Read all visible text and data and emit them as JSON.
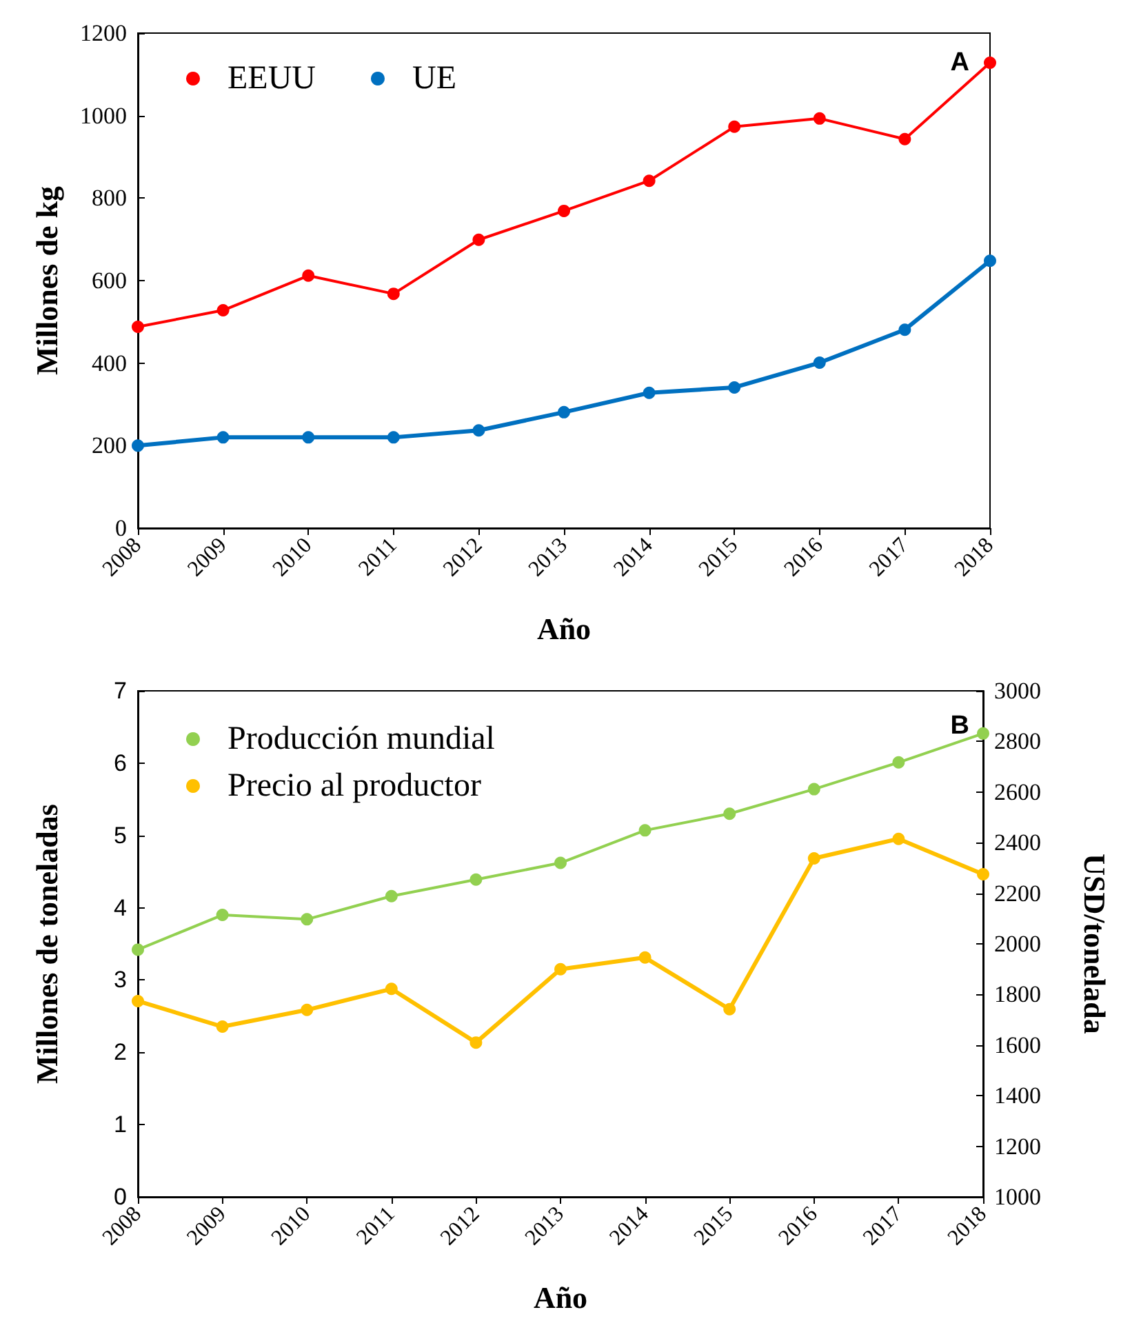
{
  "chart_data": [
    {
      "type": "line",
      "xlabel": "Año",
      "ylabel": "Millones de kg",
      "categories": [
        "2008",
        "2009",
        "2010",
        "2011",
        "2012",
        "2013",
        "2014",
        "2015",
        "2016",
        "2017",
        "2018"
      ],
      "series": [
        {
          "name": "EEUU",
          "color": "#ff0000",
          "values": [
            488,
            528,
            612,
            568,
            699,
            769,
            842,
            973,
            993,
            943,
            1128
          ]
        },
        {
          "name": "UE",
          "color": "#0070c0",
          "values": [
            200,
            220,
            220,
            220,
            237,
            281,
            328,
            341,
            401,
            481,
            648
          ]
        }
      ],
      "ylim": [
        0,
        1200
      ],
      "yticks": [
        0,
        200,
        400,
        600,
        800,
        1000,
        1200
      ],
      "grid": false,
      "legend": "top left",
      "marker": "circle",
      "annotations": [
        "A"
      ]
    },
    {
      "type": "line",
      "xlabel": "Año",
      "ylabel": "Millones de toneladas",
      "y2label": "USD/tonelada",
      "categories": [
        "2008",
        "2009",
        "2010",
        "2011",
        "2012",
        "2013",
        "2014",
        "2015",
        "2016",
        "2017",
        "2018"
      ],
      "series": [
        {
          "name": "Producción mundial",
          "color": "#92d050",
          "values": [
            3.42,
            3.9,
            3.84,
            4.16,
            4.39,
            4.62,
            5.07,
            5.3,
            5.64,
            6.01,
            6.41
          ]
        },
        {
          "name": "Precio al productor",
          "color": "#ffc000",
          "axis": "y2",
          "values": [
            1774,
            1673,
            1739,
            1822,
            1610,
            1900,
            1946,
            1742,
            2338,
            2415,
            2275
          ]
        }
      ],
      "ylim": [
        0,
        7
      ],
      "yticks": [
        0,
        1,
        2,
        3,
        4,
        5,
        6,
        7
      ],
      "y2lim": [
        1000,
        3000
      ],
      "y2ticks": [
        1000,
        1200,
        1400,
        1600,
        1800,
        2000,
        2200,
        2400,
        2600,
        2800,
        3000
      ],
      "grid": false,
      "legend": "top left",
      "marker": "circle",
      "annotations": [
        "B"
      ]
    }
  ]
}
